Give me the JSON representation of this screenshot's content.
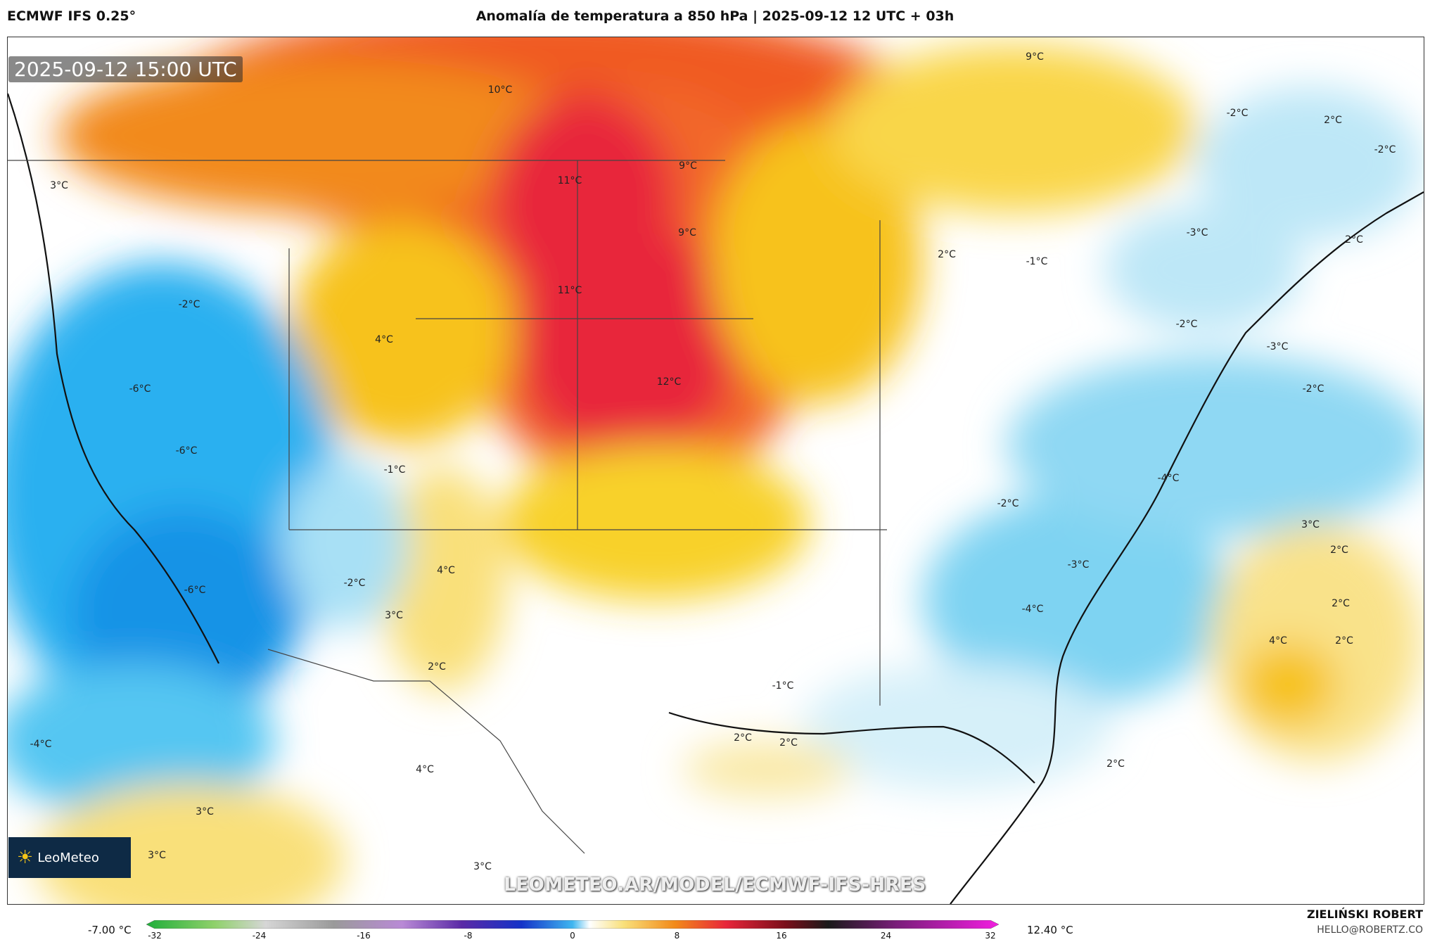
{
  "header": {
    "model": "ECMWF IFS 0.25°",
    "title": "Anomalía de temperatura a 850 hPa | 2025-09-12 12 UTC + 03h"
  },
  "map": {
    "valid_time": "2025-09-12 15:00 UTC",
    "logo_text": "LeoMeteo",
    "watermark": "LEOMETEO.AR/MODEL/ECMWF-IFS-HRES",
    "labels": [
      {
        "text": "9°C"
      },
      {
        "text": "10°C"
      },
      {
        "text": "-2°C"
      },
      {
        "text": "2°C"
      },
      {
        "text": "-2°C"
      },
      {
        "text": "3°C"
      },
      {
        "text": "11°C"
      },
      {
        "text": "9°C"
      },
      {
        "text": "-3°C"
      },
      {
        "text": "2°C"
      },
      {
        "text": "9°C"
      },
      {
        "text": "2°C"
      },
      {
        "text": "-1°C"
      },
      {
        "text": "-2°C"
      },
      {
        "text": "11°C"
      },
      {
        "text": "-2°C"
      },
      {
        "text": "4°C"
      },
      {
        "text": "-3°C"
      },
      {
        "text": "12°C"
      },
      {
        "text": "-6°C"
      },
      {
        "text": "-2°C"
      },
      {
        "text": "-6°C"
      },
      {
        "text": "-1°C"
      },
      {
        "text": "-4°C"
      },
      {
        "text": "-2°C"
      },
      {
        "text": "3°C"
      },
      {
        "text": "4°C"
      },
      {
        "text": "-3°C"
      },
      {
        "text": "2°C"
      },
      {
        "text": "-6°C"
      },
      {
        "text": "-2°C"
      },
      {
        "text": "-4°C"
      },
      {
        "text": "3°C"
      },
      {
        "text": "2°C"
      },
      {
        "text": "4°C"
      },
      {
        "text": "2°C"
      },
      {
        "text": "2°C"
      },
      {
        "text": "-1°C"
      },
      {
        "text": "2°C"
      },
      {
        "text": "2°C"
      },
      {
        "text": "-4°C"
      },
      {
        "text": "4°C"
      },
      {
        "text": "2°C"
      },
      {
        "text": "3°C"
      },
      {
        "text": "3°C"
      },
      {
        "text": "3°C"
      }
    ]
  },
  "colorbar": {
    "min_label": "-7.00 °C",
    "max_label": "12.40 °C",
    "ticks": [
      "-32",
      "-24",
      "-16",
      "-8",
      "0",
      "8",
      "16",
      "24",
      "32"
    ],
    "range": [
      -32,
      32
    ]
  },
  "footer": {
    "author": "ZIELIŃSKI ROBERT",
    "email": "HELLO@ROBERTZ.CO"
  }
}
